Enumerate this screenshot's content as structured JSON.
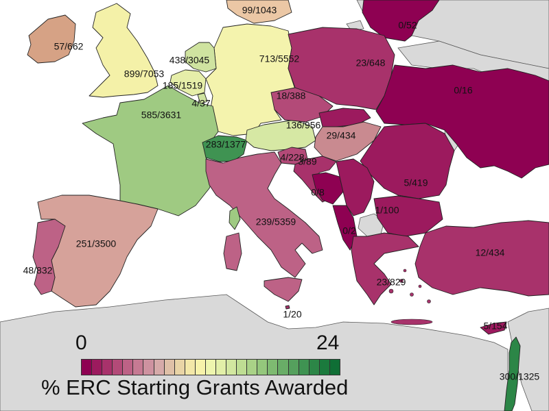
{
  "legend": {
    "min": "0",
    "max": "24",
    "title": "% ERC Starting Grants Awarded",
    "colors": [
      "#8e0152",
      "#9c1a5e",
      "#a8326b",
      "#b34a78",
      "#bd6286",
      "#c67a93",
      "#ce92a0",
      "#d6aaa9",
      "#dfc0a7",
      "#e9d4a6",
      "#f3e7a8",
      "#f7f2aa",
      "#eef5ae",
      "#e2efa8",
      "#d2e7a0",
      "#bedd93",
      "#a9d287",
      "#94c77c",
      "#7eba71",
      "#69ad67",
      "#55a05d",
      "#3f9352",
      "#2c8647",
      "#1b7a3d",
      "#0f6e35"
    ]
  },
  "countries": [
    {
      "id": "uk",
      "label": "899/7053",
      "color": "#f4f1a8"
    },
    {
      "id": "ireland",
      "label": "57/662",
      "color": "#d6a285"
    },
    {
      "id": "iceland_top",
      "label": "",
      "color": "#ebc7a5"
    },
    {
      "id": "germany",
      "label": "713/5552",
      "color": "#f4f3ad"
    },
    {
      "id": "netherlands",
      "label": "438/3045",
      "color": "#cfe3a0"
    },
    {
      "id": "belgium",
      "label": "185/1519",
      "color": "#e6eea9"
    },
    {
      "id": "luxembourg",
      "label": "4/37",
      "color": "#cfe3a0"
    },
    {
      "id": "france",
      "label": "585/3631",
      "color": "#9fca82"
    },
    {
      "id": "switzerland",
      "label": "283/1377",
      "color": "#3f9352"
    },
    {
      "id": "austria",
      "label": "136/956",
      "color": "#d6e8a4"
    },
    {
      "id": "czechia",
      "label": "18/388",
      "color": "#b34a78"
    },
    {
      "id": "slovakia",
      "label": "",
      "color": "#9c1a5e"
    },
    {
      "id": "poland",
      "label": "23/648",
      "color": "#a8326b"
    },
    {
      "id": "baltics",
      "label": "0/52",
      "color": "#8e0152"
    },
    {
      "id": "denmark_se",
      "label": "99/1043",
      "color": "#e6c4a0"
    },
    {
      "id": "ukraine",
      "label": "0/16",
      "color": "#8e0152"
    },
    {
      "id": "hungary",
      "label": "29/434",
      "color": "#c98a90"
    },
    {
      "id": "slovenia",
      "label": "4/228",
      "color": "#b34a78"
    },
    {
      "id": "croatia",
      "label": "3/89",
      "color": "#a8326b"
    },
    {
      "id": "bosnia",
      "label": "0/8",
      "color": "#8e0152"
    },
    {
      "id": "serbia",
      "label": "1/100",
      "color": "#9c1a5e"
    },
    {
      "id": "montenegro",
      "label": "0/2",
      "color": "#8e0152"
    },
    {
      "id": "romania",
      "label": "5/419",
      "color": "#9c1a5e"
    },
    {
      "id": "bulgaria",
      "label": "",
      "color": "#9c1a5e"
    },
    {
      "id": "greece",
      "label": "23/829",
      "color": "#a8326b"
    },
    {
      "id": "turkey",
      "label": "12/434",
      "color": "#a8326b"
    },
    {
      "id": "italy",
      "label": "239/5359",
      "color": "#bd6286"
    },
    {
      "id": "sardinia",
      "label": "",
      "color": "#bd6286"
    },
    {
      "id": "sicily",
      "label": "",
      "color": "#bd6286"
    },
    {
      "id": "corsica",
      "label": "",
      "color": "#9fca82"
    },
    {
      "id": "malta",
      "label": "1/20",
      "color": "#a8326b"
    },
    {
      "id": "spain",
      "label": "251/3500",
      "color": "#d6a29a"
    },
    {
      "id": "portugal",
      "label": "48/832",
      "color": "#bd6286"
    },
    {
      "id": "cyprus",
      "label": "5/154",
      "color": "#9c1a5e"
    },
    {
      "id": "israel",
      "label": "300/1325",
      "color": "#2c8647"
    }
  ]
}
